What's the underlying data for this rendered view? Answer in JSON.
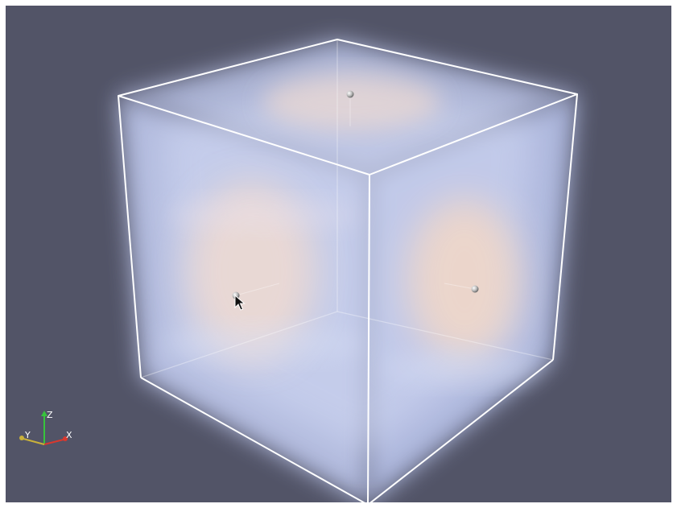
{
  "viewport": {
    "background": "#525467"
  },
  "volume": {
    "outline_color": "#ffffff",
    "glow_color": "#b8c6f2",
    "warm_color": "#f7dcc8"
  },
  "widgets": {
    "handles": [
      {
        "name": "sphere-handle-top",
        "face": "top"
      },
      {
        "name": "sphere-handle-left",
        "face": "left"
      },
      {
        "name": "sphere-handle-right",
        "face": "right"
      }
    ]
  },
  "orientation_axes": {
    "x_label": "X",
    "y_label": "Y",
    "z_label": "Z",
    "x_color": "#d9382e",
    "y_color": "#c9b13a",
    "z_color": "#37c43c"
  },
  "cursor": {
    "icon": "mouse-pointer-icon"
  }
}
